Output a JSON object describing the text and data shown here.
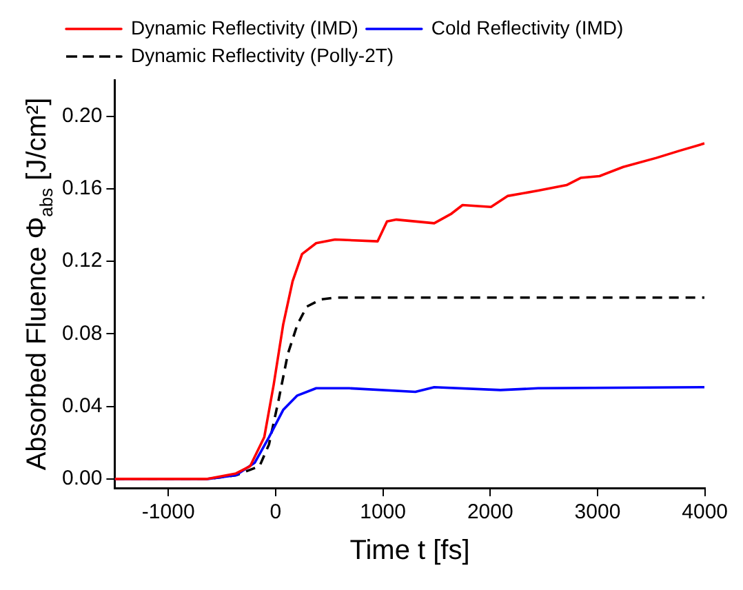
{
  "chart_data": {
    "type": "line",
    "xlabel": "Time t [fs]",
    "ylabel": "Absorbed Fluence Φ$_{abs}$ [J/cm²]",
    "xlim": [
      -1500,
      4000
    ],
    "xticks": [
      -1000,
      0,
      1000,
      2000,
      3000,
      4000
    ],
    "ylim": [
      -0.005,
      0.22
    ],
    "yticks": [
      {
        "value": 0,
        "label": "0.00"
      },
      {
        "value": 0.04,
        "label": "0.04"
      },
      {
        "value": 0.08,
        "label": "0.08"
      },
      {
        "value": 0.12,
        "label": "0.12"
      },
      {
        "value": 0.16,
        "label": "0.16"
      },
      {
        "value": 0.2,
        "label": "0.20"
      }
    ],
    "grid": false,
    "legend": "top left",
    "marker": "none",
    "series": [
      {
        "name": "Dynamic Reflectivity (IMD)",
        "color": "#ff0000",
        "line_style": "solid",
        "x": [
          -1500,
          -634,
          -370,
          -238,
          -106,
          -18,
          70,
          158,
          246,
          378,
          554,
          950,
          1038,
          1126,
          1478,
          1632,
          1742,
          2007,
          2161,
          2447,
          2711,
          2843,
          3019,
          3239,
          3547,
          3766,
          3996
        ],
        "values": [
          0,
          0,
          0.003,
          0.007,
          0.023,
          0.052,
          0.085,
          0.109,
          0.124,
          0.13,
          0.132,
          0.131,
          0.142,
          0.143,
          0.141,
          0.146,
          0.151,
          0.15,
          0.156,
          0.159,
          0.162,
          0.166,
          0.167,
          0.172,
          0.177,
          0.181,
          0.185
        ]
      },
      {
        "name": "Cold Reflectivity (IMD)",
        "color": "#0000ff",
        "line_style": "solid",
        "x": [
          -1500,
          -634,
          -370,
          -194,
          -62,
          70,
          202,
          378,
          686,
          1302,
          1478,
          2095,
          2447,
          3996
        ],
        "values": [
          0,
          0,
          0.002,
          0.009,
          0.023,
          0.038,
          0.046,
          0.05,
          0.05,
          0.048,
          0.0506,
          0.049,
          0.05,
          0.0506
        ]
      },
      {
        "name": "Dynamic Reflectivity (Polly-2T)",
        "color": "#000000",
        "line_style": "dashed",
        "x": [
          -1500,
          -634,
          -370,
          -150,
          -62,
          26,
          114,
          202,
          290,
          422,
          554,
          3996
        ],
        "values": [
          0,
          0,
          0.002,
          0.007,
          0.019,
          0.043,
          0.069,
          0.085,
          0.095,
          0.099,
          0.1,
          0.1
        ]
      }
    ]
  }
}
